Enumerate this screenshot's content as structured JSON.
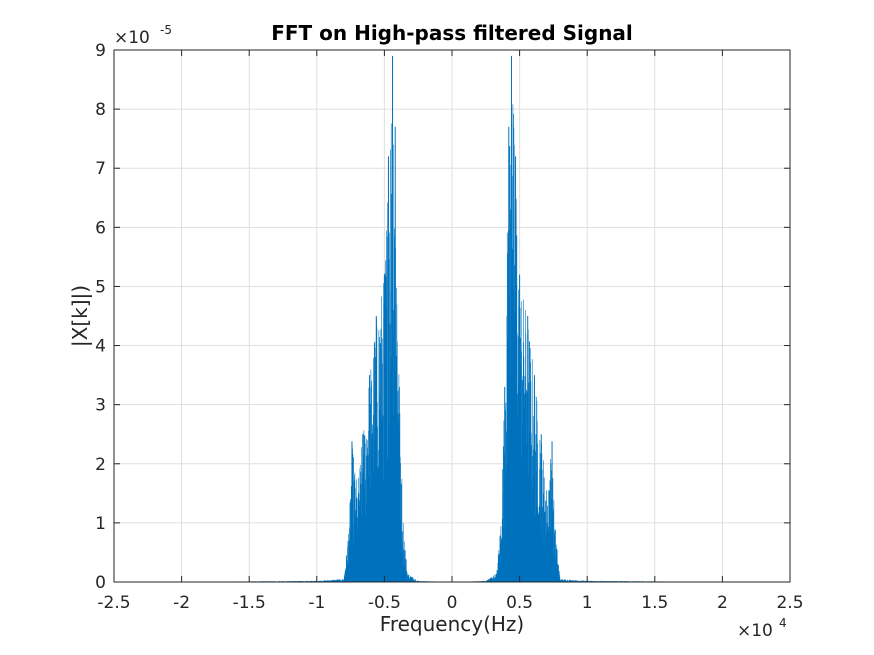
{
  "chart_data": {
    "type": "line",
    "title": "FFT on High-pass filtered Signal",
    "xlabel": "Frequency(Hz)",
    "ylabel": "|X[k]|)",
    "xlim": [
      -25000,
      25000
    ],
    "ylim": [
      0,
      9e-05
    ],
    "x_tick_labels": [
      "-2.5",
      "-2",
      "-1.5",
      "-1",
      "-0.5",
      "0",
      "0.5",
      "1",
      "1.5",
      "2",
      "2.5"
    ],
    "y_tick_labels": [
      "0",
      "1",
      "2",
      "3",
      "4",
      "5",
      "6",
      "7",
      "8",
      "9"
    ],
    "x_multiplier": {
      "base": "×10",
      "exponent": "4"
    },
    "y_multiplier": {
      "base": "×10",
      "exponent": "-5"
    },
    "grid": true,
    "line_color": "#0072BD",
    "series": [
      {
        "name": "",
        "envelope_points": [
          [
            -22000,
            0.0
          ],
          [
            -10000,
            2e-07
          ],
          [
            -8000,
            5e-07
          ],
          [
            -7700,
            7.5e-06
          ],
          [
            -7500,
            1.55e-05
          ],
          [
            -7400,
            2.38e-05
          ],
          [
            -7000,
            1.6e-05
          ],
          [
            -6600,
            2.5e-05
          ],
          [
            -6100,
            3.5e-05
          ],
          [
            -5600,
            4.5e-05
          ],
          [
            -5000,
            5.2e-05
          ],
          [
            -4700,
            7.2e-05
          ],
          [
            -4400,
            8.9e-05
          ],
          [
            -4200,
            7.7e-05
          ],
          [
            -3900,
            3.3e-05
          ],
          [
            -3600,
            1e-05
          ],
          [
            -3300,
            1.5e-06
          ],
          [
            -2500,
            2e-07
          ],
          [
            0,
            0.0
          ],
          [
            2500,
            2e-07
          ],
          [
            3300,
            1.5e-06
          ],
          [
            3600,
            1e-05
          ],
          [
            3900,
            3.3e-05
          ],
          [
            4200,
            7.7e-05
          ],
          [
            4400,
            8.9e-05
          ],
          [
            4700,
            7.2e-05
          ],
          [
            5000,
            5.2e-05
          ],
          [
            5600,
            4.5e-05
          ],
          [
            6100,
            3.5e-05
          ],
          [
            6600,
            2.5e-05
          ],
          [
            7000,
            1.6e-05
          ],
          [
            7400,
            2.38e-05
          ],
          [
            7500,
            1.55e-05
          ],
          [
            7700,
            7.5e-06
          ],
          [
            8000,
            5e-07
          ],
          [
            10000,
            2e-07
          ],
          [
            22000,
            0.0
          ]
        ]
      }
    ]
  }
}
